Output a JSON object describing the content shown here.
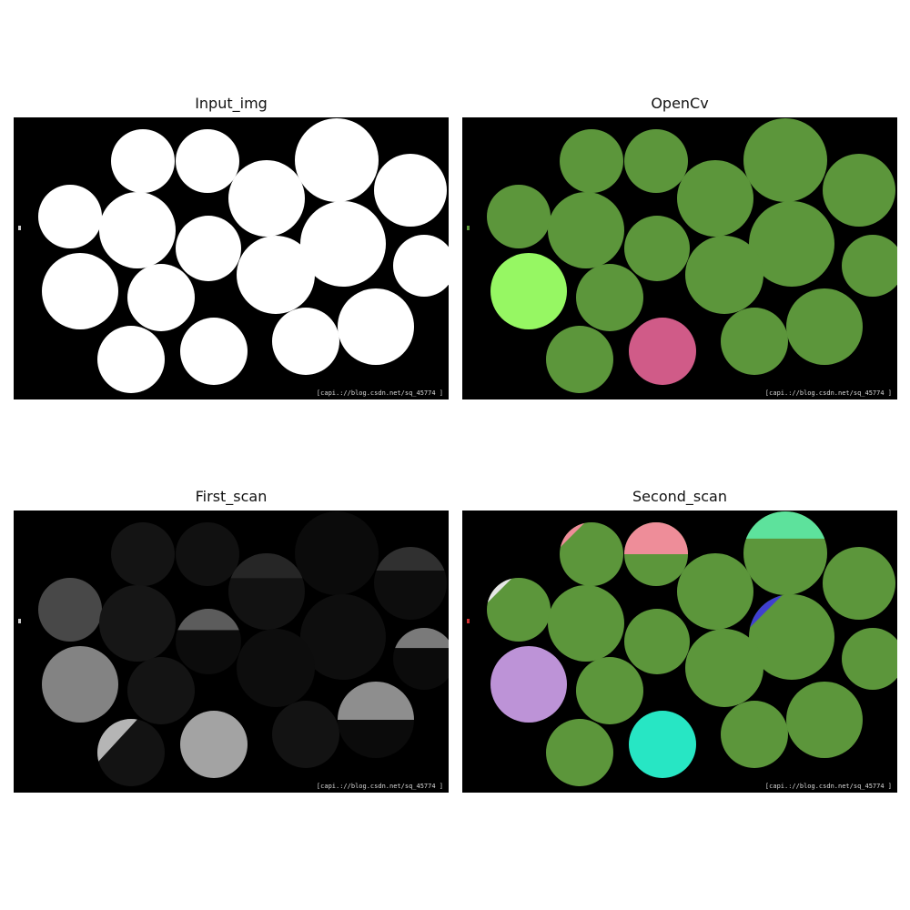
{
  "panels": [
    {
      "title": "Input_img",
      "watermark": "[capi.://blog.csdn.net/sq_45774 ]",
      "fills": [
        "#ffffff",
        "#ffffff",
        "#ffffff",
        "#ffffff",
        "#ffffff",
        "#ffffff",
        "#ffffff",
        "#ffffff",
        "#ffffff",
        "#ffffff",
        "#ffffff",
        "#ffffff",
        "#ffffff",
        "#ffffff",
        "#ffffff",
        "#ffffff",
        "#ffffff",
        "#ffffff",
        "#ffffff",
        "#ffffff"
      ],
      "overlays": []
    },
    {
      "title": "OpenCv",
      "watermark": "[capi.://blog.csdn.net/sq_45774 ]",
      "fills": [
        "#5c963b",
        "#5c963b",
        "#5c963b",
        "#5c963b",
        "#5c963b",
        "#5c963b",
        "#5c963b",
        "#5c963b",
        "#5c963b",
        "#5c963b",
        "#5c963b",
        "#5c963b",
        "#5c963b",
        "#96f763",
        "#5c963b",
        "#5c963b",
        "#5c963b",
        "#5c963b",
        "#d05b88",
        "#5c963b"
      ],
      "overlays": []
    },
    {
      "title": "First_scan",
      "watermark": "[capi.://blog.csdn.net/sq_45774 ]",
      "fills": [
        "#141414",
        "#111111",
        "#0b0b0b",
        "#121212",
        "#0d0d0d",
        "#484848",
        "#161616",
        "#0c0c0c",
        "#0e0e0e",
        "#0b0b0b",
        "#838383",
        "#141414",
        "#0d0d0d",
        "#0b0b0b",
        "#131313",
        "#131313",
        "#a3a3a3",
        "#0b0b0b",
        "#8e8e8e",
        "#0b0b0b"
      ],
      "overlays": [
        {
          "circle": 3,
          "color": "#262626",
          "kind": "top-band"
        },
        {
          "circle": 4,
          "color": "#303030",
          "kind": "top-band"
        },
        {
          "circle": 7,
          "color": "#5c5c5c",
          "kind": "top-band"
        },
        {
          "circle": 9,
          "color": "#7a7a7a",
          "kind": "top-band"
        },
        {
          "circle": 17,
          "color": "#8e8e8e",
          "kind": "top-half"
        },
        {
          "circle": 15,
          "color": "#b5b5b5",
          "kind": "wedge"
        }
      ]
    },
    {
      "title": "Second_scan",
      "watermark": "[capi.://blog.csdn.net/sq_45774 ]",
      "fills": [
        "#5c963b",
        "#5c963b",
        "#5c963b",
        "#5c963b",
        "#5c963b",
        "#5c963b",
        "#5c963b",
        "#5c963b",
        "#5c963b",
        "#5c963b",
        "#bd93d7",
        "#5c963b",
        "#5c963b",
        "#5c963b",
        "#5c963b",
        "#5c963b",
        "#27e6c4",
        "#5c963b",
        "#5c963b",
        "#5c963b"
      ],
      "overlays": [
        {
          "circle": 0,
          "color": "#ee8d99",
          "kind": "corner"
        },
        {
          "circle": 1,
          "color": "#ee8d99",
          "kind": "top-half"
        },
        {
          "circle": 2,
          "color": "#5de29c",
          "kind": "top-band"
        },
        {
          "circle": 5,
          "color": "#e6e6e6",
          "kind": "corner"
        },
        {
          "circle": 8,
          "color": "#4040d0",
          "kind": "corner"
        }
      ]
    }
  ]
}
